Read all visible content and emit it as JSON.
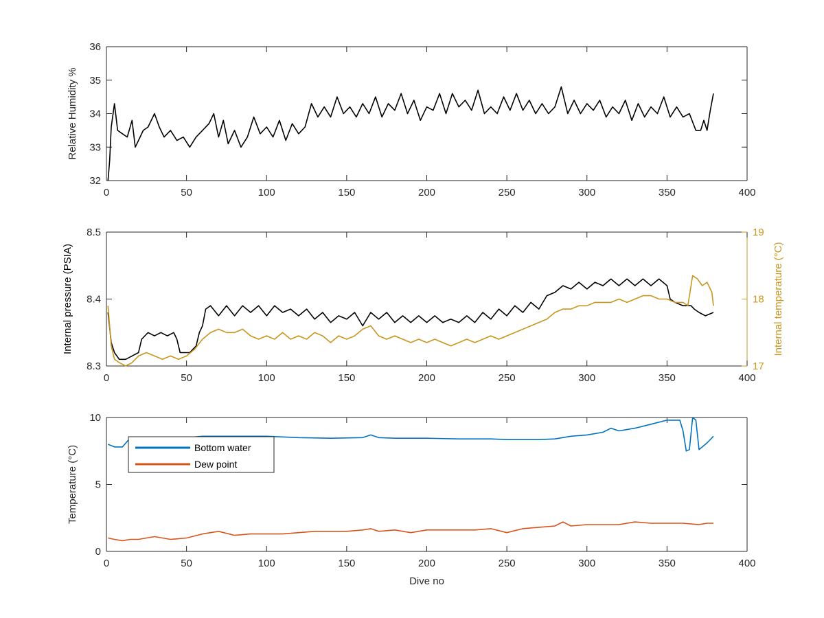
{
  "figure": {
    "background": "#ffffff"
  },
  "chart_data": [
    {
      "type": "line",
      "title": "",
      "xlabel": "",
      "ylabel": "Relative Humidity %",
      "xlim": [
        0,
        400
      ],
      "ylim": [
        32,
        36
      ],
      "x_ticks": [
        "0",
        "50",
        "100",
        "150",
        "200",
        "250",
        "300",
        "350",
        "400"
      ],
      "y_ticks": [
        "32",
        "33",
        "34",
        "35",
        "36"
      ],
      "grid": false,
      "series": [
        {
          "name": "",
          "color": "#000000",
          "x": [
            1,
            2,
            3,
            5,
            7,
            10,
            13,
            16,
            18,
            20,
            23,
            26,
            30,
            33,
            36,
            40,
            44,
            48,
            52,
            56,
            60,
            64,
            67,
            70,
            73,
            76,
            80,
            84,
            88,
            92,
            96,
            100,
            104,
            108,
            112,
            116,
            120,
            124,
            128,
            132,
            136,
            140,
            144,
            148,
            152,
            156,
            160,
            164,
            168,
            172,
            176,
            180,
            184,
            188,
            192,
            196,
            200,
            204,
            208,
            212,
            216,
            220,
            224,
            228,
            232,
            236,
            240,
            244,
            248,
            252,
            256,
            260,
            264,
            268,
            272,
            276,
            280,
            284,
            288,
            292,
            296,
            300,
            304,
            308,
            312,
            316,
            320,
            324,
            328,
            332,
            336,
            340,
            344,
            348,
            352,
            356,
            360,
            364,
            368,
            371,
            373,
            375,
            377,
            379
          ],
          "y": [
            32.0,
            32.6,
            33.6,
            34.3,
            33.5,
            33.4,
            33.3,
            33.8,
            33.0,
            33.2,
            33.5,
            33.6,
            34.0,
            33.6,
            33.3,
            33.5,
            33.2,
            33.3,
            33.0,
            33.3,
            33.5,
            33.7,
            34.0,
            33.3,
            33.8,
            33.1,
            33.5,
            33.0,
            33.3,
            33.9,
            33.4,
            33.6,
            33.3,
            33.8,
            33.2,
            33.7,
            33.4,
            33.6,
            34.3,
            33.9,
            34.2,
            33.9,
            34.5,
            34.0,
            34.2,
            33.9,
            34.3,
            34.0,
            34.5,
            33.9,
            34.3,
            34.1,
            34.6,
            34.0,
            34.4,
            33.8,
            34.2,
            34.1,
            34.6,
            34.0,
            34.6,
            34.2,
            34.4,
            34.1,
            34.7,
            34.0,
            34.2,
            34.0,
            34.5,
            34.1,
            34.6,
            34.1,
            34.4,
            34.0,
            34.3,
            34.0,
            34.2,
            34.8,
            34.0,
            34.4,
            34.0,
            34.3,
            34.1,
            34.4,
            33.9,
            34.2,
            34.0,
            34.4,
            33.8,
            34.3,
            33.9,
            34.2,
            34.0,
            34.5,
            33.9,
            34.2,
            33.9,
            34.0,
            33.5,
            33.5,
            33.8,
            33.5,
            34.1,
            34.6
          ]
        }
      ]
    },
    {
      "type": "line",
      "title": "",
      "xlabel": "",
      "ylabel": "Internal pressure (PSIA)",
      "ylabel_right": "Internal temperature (°C)",
      "xlim": [
        0,
        400
      ],
      "ylim": [
        8.3,
        8.5
      ],
      "ylim_right": [
        17,
        19
      ],
      "x_ticks": [
        "0",
        "50",
        "100",
        "150",
        "200",
        "250",
        "300",
        "350",
        "400"
      ],
      "y_ticks": [
        "8.3",
        "8.4",
        "8.5"
      ],
      "y_ticks_right": [
        "17",
        "18",
        "19"
      ],
      "grid": false,
      "series": [
        {
          "name": "",
          "axis": "left",
          "color": "#000000",
          "x": [
            1,
            3,
            5,
            8,
            12,
            16,
            20,
            22,
            26,
            30,
            34,
            38,
            42,
            44,
            46,
            48,
            52,
            56,
            58,
            60,
            62,
            65,
            70,
            75,
            80,
            85,
            90,
            95,
            100,
            105,
            110,
            115,
            120,
            125,
            130,
            135,
            140,
            145,
            150,
            155,
            160,
            165,
            170,
            175,
            180,
            185,
            190,
            195,
            200,
            205,
            210,
            215,
            220,
            225,
            230,
            235,
            240,
            245,
            250,
            255,
            260,
            265,
            270,
            275,
            280,
            285,
            290,
            295,
            300,
            305,
            310,
            315,
            320,
            325,
            330,
            335,
            340,
            345,
            350,
            352,
            355,
            360,
            365,
            367,
            370,
            374,
            379
          ],
          "y": [
            8.38,
            8.335,
            8.32,
            8.31,
            8.31,
            8.315,
            8.32,
            8.34,
            8.35,
            8.345,
            8.35,
            8.345,
            8.35,
            8.34,
            8.32,
            8.32,
            8.32,
            8.33,
            8.35,
            8.36,
            8.385,
            8.39,
            8.375,
            8.39,
            8.375,
            8.39,
            8.38,
            8.39,
            8.375,
            8.39,
            8.38,
            8.385,
            8.375,
            8.385,
            8.37,
            8.38,
            8.365,
            8.375,
            8.37,
            8.38,
            8.36,
            8.38,
            8.37,
            8.38,
            8.365,
            8.375,
            8.365,
            8.375,
            8.365,
            8.375,
            8.365,
            8.37,
            8.365,
            8.375,
            8.365,
            8.38,
            8.37,
            8.385,
            8.375,
            8.39,
            8.38,
            8.395,
            8.385,
            8.405,
            8.41,
            8.42,
            8.415,
            8.425,
            8.415,
            8.425,
            8.42,
            8.43,
            8.42,
            8.43,
            8.42,
            8.43,
            8.42,
            8.43,
            8.42,
            8.4,
            8.395,
            8.39,
            8.39,
            8.385,
            8.38,
            8.375,
            8.38
          ]
        },
        {
          "name": "",
          "axis": "right",
          "color": "#c8961e",
          "x": [
            1,
            3,
            5,
            8,
            12,
            16,
            20,
            25,
            30,
            35,
            40,
            45,
            50,
            55,
            60,
            65,
            70,
            75,
            80,
            85,
            90,
            95,
            100,
            105,
            110,
            115,
            120,
            125,
            130,
            135,
            140,
            145,
            150,
            155,
            160,
            165,
            170,
            175,
            180,
            185,
            190,
            195,
            200,
            205,
            210,
            215,
            220,
            225,
            230,
            235,
            240,
            245,
            250,
            255,
            260,
            265,
            270,
            275,
            280,
            285,
            290,
            295,
            300,
            305,
            310,
            315,
            320,
            325,
            330,
            335,
            340,
            345,
            350,
            355,
            360,
            363,
            366,
            369,
            372,
            375,
            378,
            379
          ],
          "y": [
            17.9,
            17.3,
            17.1,
            17.05,
            17.0,
            17.05,
            17.15,
            17.2,
            17.15,
            17.1,
            17.15,
            17.1,
            17.15,
            17.25,
            17.4,
            17.5,
            17.55,
            17.5,
            17.5,
            17.55,
            17.45,
            17.4,
            17.45,
            17.4,
            17.5,
            17.4,
            17.45,
            17.4,
            17.5,
            17.45,
            17.35,
            17.45,
            17.4,
            17.45,
            17.55,
            17.6,
            17.45,
            17.4,
            17.45,
            17.4,
            17.35,
            17.4,
            17.35,
            17.4,
            17.35,
            17.3,
            17.35,
            17.4,
            17.35,
            17.4,
            17.45,
            17.4,
            17.45,
            17.5,
            17.55,
            17.6,
            17.65,
            17.7,
            17.8,
            17.85,
            17.85,
            17.9,
            17.9,
            17.95,
            17.95,
            17.95,
            18.0,
            17.95,
            18.0,
            18.05,
            18.05,
            18.0,
            18.0,
            17.95,
            17.95,
            17.9,
            18.35,
            18.3,
            18.2,
            18.25,
            18.1,
            17.9
          ]
        }
      ]
    },
    {
      "type": "line",
      "title": "",
      "xlabel": "Dive no",
      "ylabel": "Temperature (°C)",
      "xlim": [
        0,
        400
      ],
      "ylim": [
        0,
        10
      ],
      "x_ticks": [
        "0",
        "50",
        "100",
        "150",
        "200",
        "250",
        "300",
        "350",
        "400"
      ],
      "y_ticks": [
        "0",
        "5",
        "10"
      ],
      "grid": false,
      "legend": "top-left",
      "series": [
        {
          "name": "Bottom water",
          "color": "#0072bd",
          "x": [
            1,
            5,
            10,
            15,
            20,
            30,
            40,
            50,
            55,
            60,
            70,
            80,
            90,
            100,
            120,
            140,
            160,
            165,
            170,
            180,
            200,
            220,
            240,
            250,
            260,
            270,
            280,
            290,
            300,
            310,
            315,
            320,
            330,
            340,
            350,
            355,
            358,
            360,
            362,
            364,
            366,
            368,
            370,
            375,
            379
          ],
          "y": [
            8.0,
            7.8,
            7.8,
            8.5,
            8.5,
            8.5,
            8.5,
            8.5,
            8.55,
            8.6,
            8.6,
            8.6,
            8.6,
            8.6,
            8.5,
            8.45,
            8.5,
            8.7,
            8.5,
            8.45,
            8.45,
            8.4,
            8.4,
            8.35,
            8.35,
            8.35,
            8.4,
            8.6,
            8.7,
            8.9,
            9.2,
            9.0,
            9.2,
            9.5,
            9.8,
            9.8,
            9.8,
            9.0,
            7.5,
            7.6,
            10.0,
            9.8,
            7.6,
            8.1,
            8.6
          ]
        },
        {
          "name": "Dew point",
          "color": "#d95319",
          "x": [
            1,
            5,
            10,
            15,
            20,
            25,
            30,
            40,
            50,
            60,
            70,
            80,
            90,
            100,
            110,
            120,
            130,
            140,
            150,
            160,
            165,
            170,
            180,
            190,
            200,
            210,
            220,
            230,
            240,
            250,
            260,
            270,
            280,
            285,
            290,
            300,
            310,
            320,
            330,
            340,
            350,
            360,
            370,
            375,
            379
          ],
          "y": [
            1.0,
            0.9,
            0.8,
            0.9,
            0.9,
            1.0,
            1.1,
            0.9,
            1.0,
            1.3,
            1.5,
            1.2,
            1.3,
            1.3,
            1.3,
            1.4,
            1.5,
            1.5,
            1.5,
            1.6,
            1.7,
            1.5,
            1.6,
            1.4,
            1.6,
            1.6,
            1.6,
            1.6,
            1.7,
            1.4,
            1.7,
            1.8,
            1.9,
            2.2,
            1.9,
            2.0,
            2.0,
            2.0,
            2.2,
            2.1,
            2.1,
            2.1,
            2.0,
            2.1,
            2.1
          ]
        }
      ]
    }
  ]
}
